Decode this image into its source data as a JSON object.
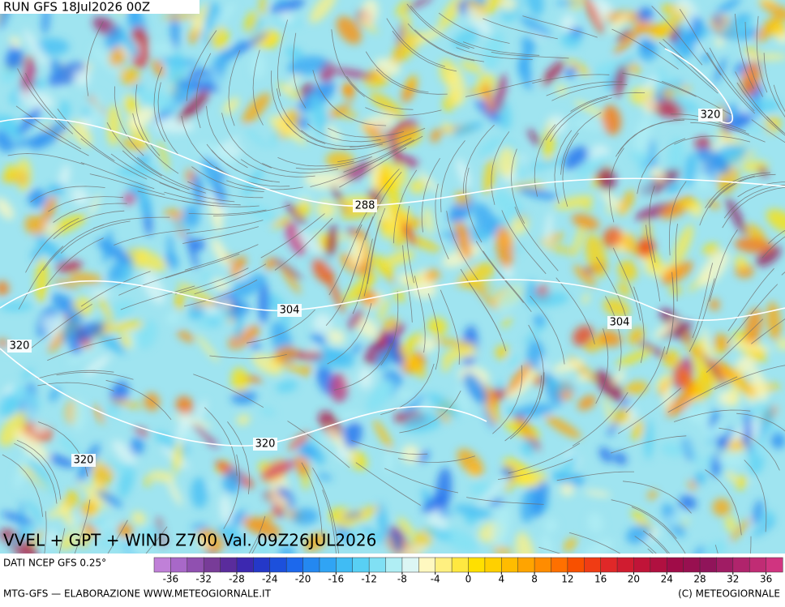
{
  "header": {
    "run": "RUN GFS 18Jul2026 00Z"
  },
  "title": "VVEL + GPT + WIND Z700 Val. 09Z26JUL2026",
  "source": "DATI NCEP GFS 0.25°",
  "credit_left": "MTG-GFS — ELABORAZIONE WWW.METEOGIORNALE.IT",
  "credit_right": "(C) METEOGIORNALE",
  "contour_labels": [
    288,
    304,
    304,
    320,
    320,
    320,
    320
  ],
  "colorbar": {
    "lim": [
      -38,
      38
    ],
    "ticks": [
      -36,
      -32,
      -28,
      -24,
      -20,
      -16,
      -12,
      -8,
      -4,
      0,
      4,
      8,
      12,
      16,
      20,
      24,
      28,
      32,
      36
    ],
    "colors": [
      "#c080d8",
      "#a868c8",
      "#9050b0",
      "#783c98",
      "#5a2c9c",
      "#3c28b0",
      "#2438c8",
      "#1c50dc",
      "#1c68ec",
      "#2488f0",
      "#30a4f4",
      "#40bcf4",
      "#58d0f4",
      "#80e0f4",
      "#b0eef4",
      "#dcf6f4",
      "#fff8c0",
      "#fff080",
      "#ffe840",
      "#ffe000",
      "#ffd000",
      "#ffbc00",
      "#ffa400",
      "#ff8c00",
      "#ff7000",
      "#f85000",
      "#f03c14",
      "#e02828",
      "#d01c30",
      "#c01438",
      "#b01040",
      "#a00c48",
      "#981050",
      "#90145a",
      "#a01c64",
      "#b0246c",
      "#c02c74",
      "#d03480"
    ]
  }
}
